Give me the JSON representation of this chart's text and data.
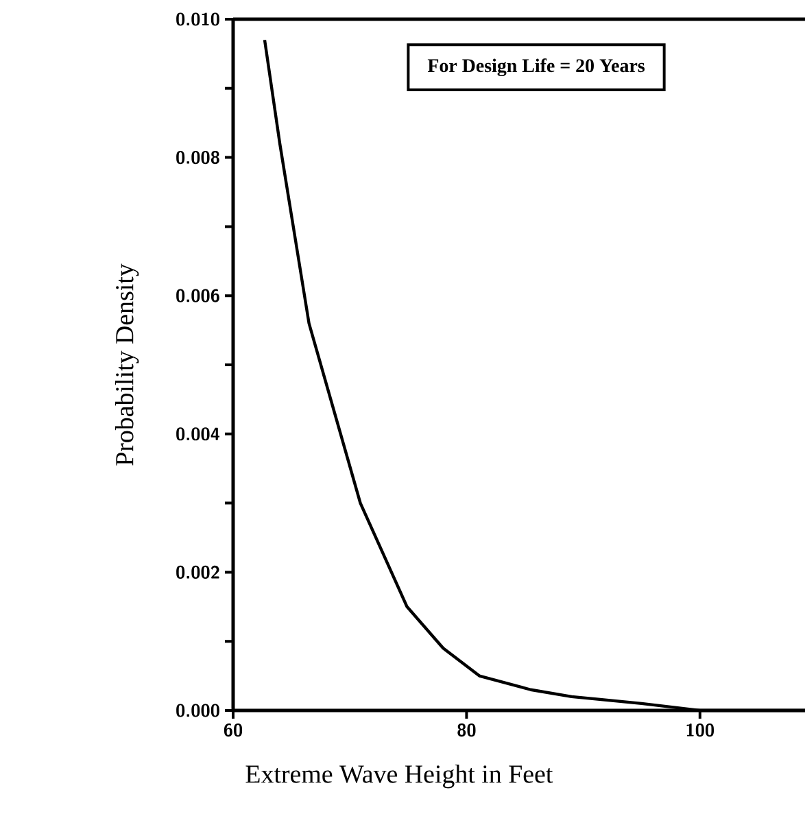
{
  "chart_data": {
    "type": "line",
    "xlabel": "Extreme Wave Height in Feet",
    "ylabel": "Probability Density",
    "annotations": [
      "For Design Life = 20 Years"
    ],
    "xlim": [
      60,
      109
    ],
    "xticks": [
      60,
      80,
      100
    ],
    "ylim": [
      0,
      0.01
    ],
    "yticks": [
      {
        "value": 0,
        "label": "0.000"
      },
      {
        "value": 0.001,
        "label": null
      },
      {
        "value": 0.002,
        "label": "0.002"
      },
      {
        "value": 0.003,
        "label": null
      },
      {
        "value": 0.004,
        "label": "0.004"
      },
      {
        "value": 0.005,
        "label": null
      },
      {
        "value": 0.006,
        "label": "0.006"
      },
      {
        "value": 0.007,
        "label": null
      },
      {
        "value": 0.008,
        "label": "0.008"
      },
      {
        "value": 0.009,
        "label": null
      },
      {
        "value": 0.01,
        "label": "0.010"
      }
    ],
    "grid": false,
    "marker": "none",
    "line_style": "solid",
    "series": [
      {
        "color": "#000000",
        "x": [
          62.7,
          64.0,
          66.5,
          70.9,
          74.9,
          78.0,
          81.1,
          85.5,
          89,
          95,
          100,
          109
        ],
        "values": [
          0.0097,
          0.0082,
          0.0056,
          0.003,
          0.0015,
          0.0009,
          0.0005,
          0.0003,
          0.0002,
          0.0001,
          0.0,
          0.0
        ]
      }
    ]
  }
}
